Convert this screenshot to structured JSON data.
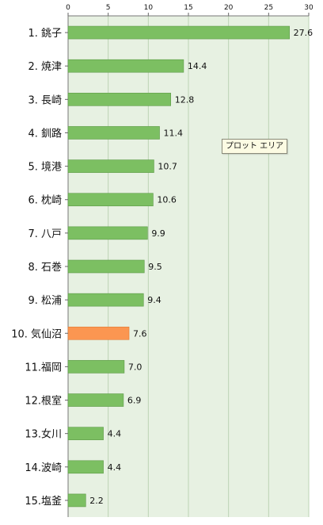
{
  "tooltip_text": "プロット エリア",
  "colors": {
    "plot_bg": "#e7f1e2",
    "grid": "#bcd3b4",
    "bar": "#7cbf62",
    "bar_edge": "#5e9b48",
    "highlight_bar": "#fb9651",
    "highlight_edge": "#e07a33",
    "text": "#111111"
  },
  "chart_data": {
    "type": "bar",
    "orientation": "horizontal",
    "categories": [
      "1. 銚子",
      "2. 焼津",
      "3. 長崎",
      "4. 釧路",
      "5. 境港",
      "6. 枕崎",
      "7. 八戸",
      "8. 石巻",
      "9. 松浦",
      "10. 気仙沼",
      "11.福岡",
      "12.根室",
      "13.女川",
      "14.波崎",
      "15.塩釜"
    ],
    "values": [
      27.6,
      14.4,
      12.8,
      11.4,
      10.7,
      10.6,
      9.9,
      9.5,
      9.4,
      7.6,
      7.0,
      6.9,
      4.4,
      4.4,
      2.2
    ],
    "value_labels": [
      "27.6",
      "14.4",
      "12.8",
      "11.4",
      "10.7",
      "10.6",
      "9.9",
      "9.5",
      "9.4",
      "7.6",
      "7.0",
      "6.9",
      "4.4",
      "4.4",
      "2.2"
    ],
    "highlight_index": 9,
    "xlim": [
      0,
      30
    ],
    "xticks": [
      0,
      5,
      10,
      15,
      20,
      25,
      30
    ],
    "xtick_labels": [
      "0",
      "5",
      "10",
      "15",
      "20",
      "25",
      "30"
    ],
    "axis_position": "top",
    "grid": true,
    "title": "",
    "xlabel": "",
    "ylabel": ""
  }
}
